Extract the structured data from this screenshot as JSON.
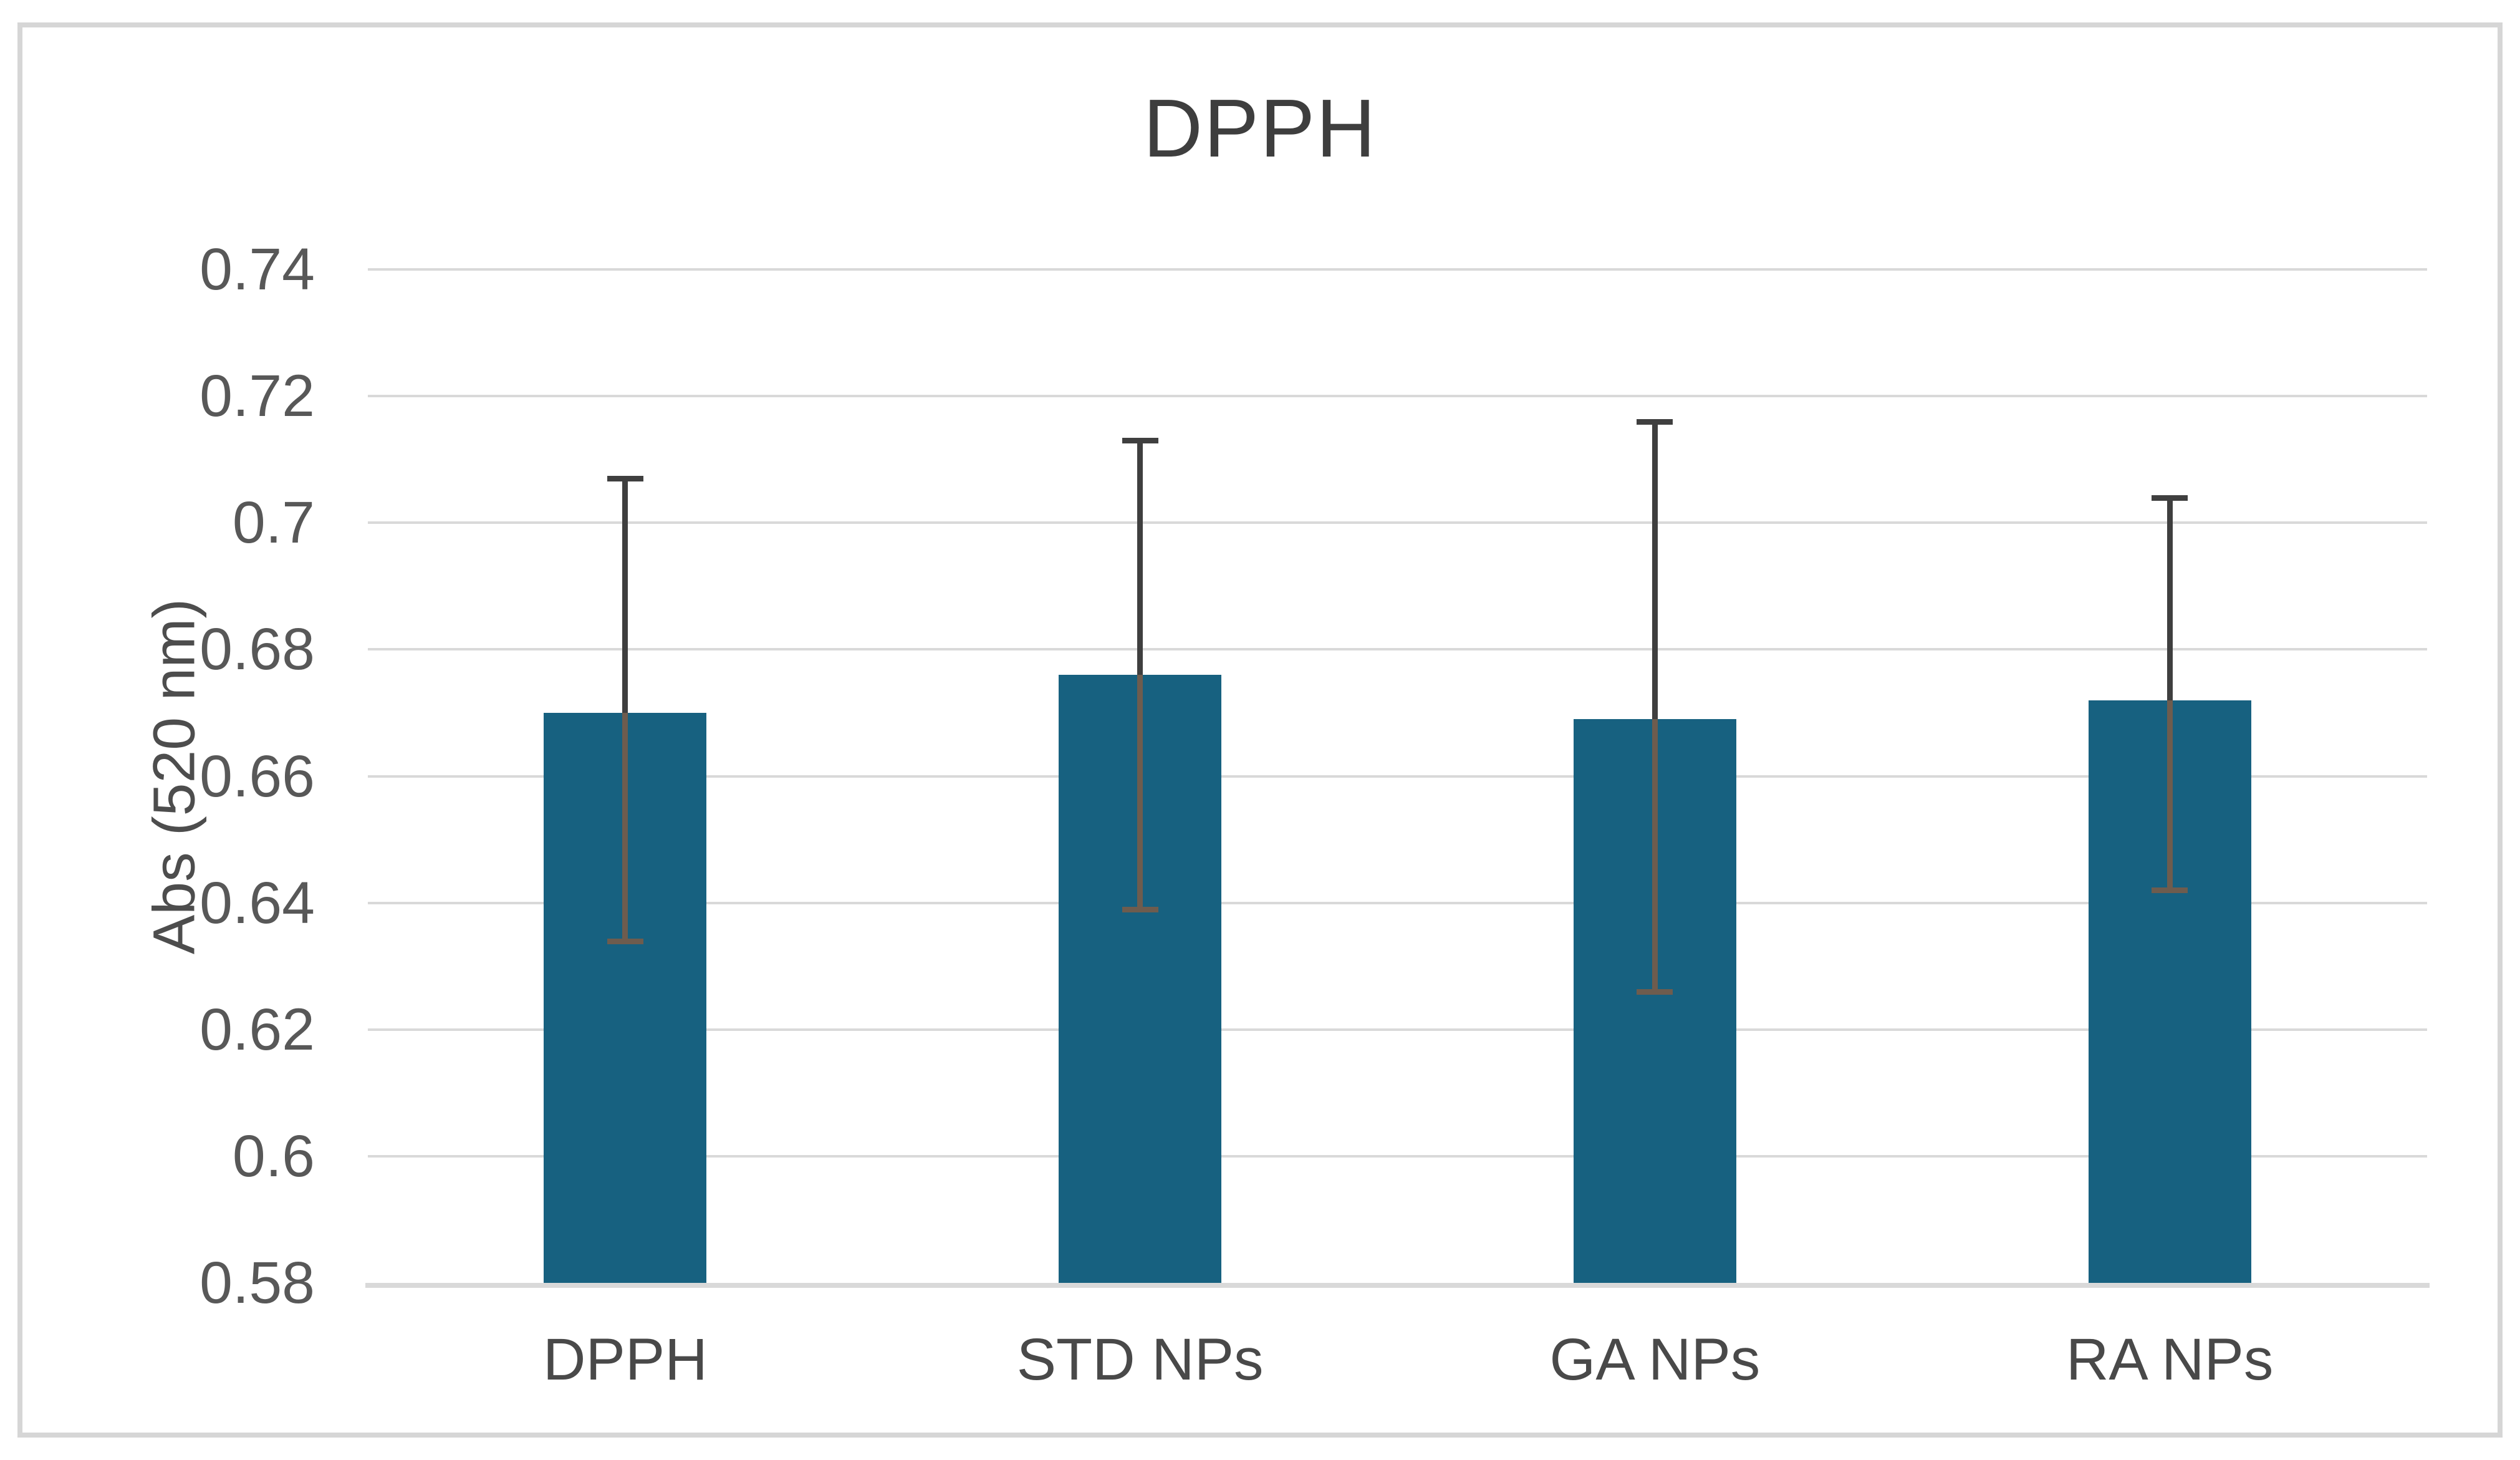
{
  "window": {
    "background": "#ffffff",
    "frame_border_color": "#d6d6d6"
  },
  "chart_data": {
    "type": "bar",
    "title": "DPPH",
    "xlabel": "",
    "ylabel": "Abs (520 nm)",
    "categories": [
      "DPPH",
      "STD NPs",
      "GA NPs",
      "RA NPs"
    ],
    "values": [
      0.67,
      0.676,
      0.669,
      0.672
    ],
    "error_high": [
      0.707,
      0.713,
      0.716,
      0.704
    ],
    "error_low": [
      0.634,
      0.639,
      0.626,
      0.642
    ],
    "ylim": [
      0.58,
      0.74
    ],
    "ytick_step": 0.02,
    "ytick_labels": [
      "0.74",
      "0.72",
      "0.7",
      "0.68",
      "0.66",
      "0.64",
      "0.62",
      "0.6",
      "0.58"
    ],
    "grid": true,
    "legend": "none",
    "bar_color": "#176180",
    "gridline_color": "#d9d9d9",
    "axisline_color": "#d9d9d9",
    "error_color_above_bar": "#3f3f3f",
    "error_color_inside_bar": "#6e5c4e",
    "title_color": "#3e3e3e",
    "tick_label_color": "#585858",
    "category_label_color": "#494949"
  }
}
